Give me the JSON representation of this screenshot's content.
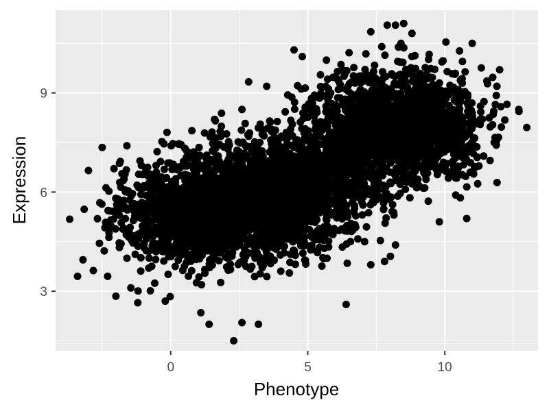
{
  "chart_data": {
    "type": "scatter",
    "title": "",
    "xlabel": "Phenotype",
    "ylabel": "Expression",
    "xlim": [
      -4.2,
      13.4
    ],
    "ylim": [
      1.2,
      11.5
    ],
    "x_ticks": [
      0,
      5,
      10
    ],
    "x_minor_ticks": [
      -2.5,
      2.5,
      7.5,
      12.5
    ],
    "y_ticks": [
      3,
      6,
      9
    ],
    "y_minor_ticks": [
      1.5,
      4.5,
      7.5,
      10.5
    ],
    "x_tick_labels": [
      "0",
      "5",
      "10"
    ],
    "y_tick_labels": [
      "3",
      "6",
      "9"
    ],
    "grid": true,
    "legend": "none",
    "point_color": "#000000",
    "panel_background": "#ebebeb",
    "grid_color": "#ffffff",
    "clusters": [
      {
        "x_mean": 0.3,
        "y_mean": 5.3,
        "x_sd": 1.3,
        "y_sd": 0.8,
        "n": 600
      },
      {
        "x_mean": 2.2,
        "y_mean": 5.6,
        "x_sd": 1.4,
        "y_sd": 0.85,
        "n": 1000
      },
      {
        "x_mean": 4.0,
        "y_mean": 5.9,
        "x_sd": 1.4,
        "y_sd": 0.85,
        "n": 1000
      },
      {
        "x_mean": 5.8,
        "y_mean": 6.7,
        "x_sd": 1.3,
        "y_sd": 0.9,
        "n": 500
      },
      {
        "x_mean": 7.8,
        "y_mean": 8.1,
        "x_sd": 1.3,
        "y_sd": 0.8,
        "n": 900
      },
      {
        "x_mean": 9.6,
        "y_mean": 8.0,
        "x_sd": 1.1,
        "y_sd": 0.8,
        "n": 500
      }
    ],
    "outliers": [
      {
        "x": -3.4,
        "y": 3.45
      },
      {
        "x": -3.2,
        "y": 3.95
      },
      {
        "x": -3.0,
        "y": 6.65
      },
      {
        "x": -2.6,
        "y": 4.45
      },
      {
        "x": -2.5,
        "y": 7.35
      },
      {
        "x": -2.3,
        "y": 3.45
      },
      {
        "x": -2.0,
        "y": 2.85
      },
      {
        "x": -1.6,
        "y": 7.4
      },
      {
        "x": -1.2,
        "y": 2.65
      },
      {
        "x": -0.2,
        "y": 2.7
      },
      {
        "x": 1.1,
        "y": 2.35
      },
      {
        "x": 1.4,
        "y": 2.0
      },
      {
        "x": 2.3,
        "y": 1.5
      },
      {
        "x": 2.6,
        "y": 2.05
      },
      {
        "x": 3.2,
        "y": 2.0
      },
      {
        "x": 1.6,
        "y": 8.2
      },
      {
        "x": 2.6,
        "y": 8.5
      },
      {
        "x": 3.5,
        "y": 9.2
      },
      {
        "x": 4.5,
        "y": 10.3
      },
      {
        "x": 4.8,
        "y": 10.1
      },
      {
        "x": 6.4,
        "y": 2.6
      },
      {
        "x": 7.3,
        "y": 3.8
      },
      {
        "x": 7.8,
        "y": 3.9
      },
      {
        "x": 8.2,
        "y": 4.4
      },
      {
        "x": 9.8,
        "y": 5.1
      },
      {
        "x": 10.8,
        "y": 5.2
      },
      {
        "x": 11.2,
        "y": 6.25
      },
      {
        "x": 11.8,
        "y": 7.5
      },
      {
        "x": 11.9,
        "y": 9.2
      },
      {
        "x": 12.0,
        "y": 9.7
      },
      {
        "x": 12.7,
        "y": 8.5
      },
      {
        "x": 11.0,
        "y": 10.5
      },
      {
        "x": 7.3,
        "y": 10.85
      },
      {
        "x": 7.9,
        "y": 11.05
      },
      {
        "x": 8.2,
        "y": 11.05
      },
      {
        "x": 8.5,
        "y": 11.1
      },
      {
        "x": 8.8,
        "y": 10.8
      },
      {
        "x": 8.4,
        "y": 10.5
      },
      {
        "x": 7.7,
        "y": 10.4
      }
    ]
  }
}
